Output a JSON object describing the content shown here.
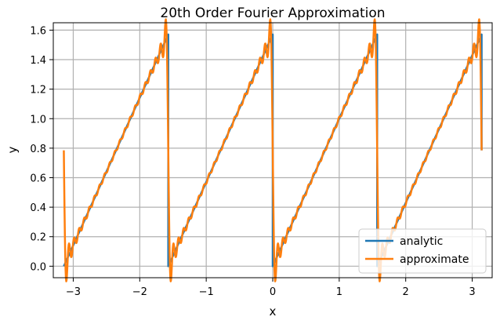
{
  "chart_data": {
    "type": "line",
    "title": "20th Order Fourier Approximation",
    "xlabel": "x",
    "ylabel": "y",
    "xlim": [
      -3.3,
      3.3
    ],
    "ylim": [
      -0.078,
      1.65
    ],
    "grid": true,
    "legend_position": "bottom-right",
    "xticks": [
      -3,
      -2,
      -1,
      0,
      1,
      2,
      3
    ],
    "xtick_labels": [
      "−3",
      "−2",
      "−1",
      "0",
      "1",
      "2",
      "3"
    ],
    "yticks": [
      0.0,
      0.2,
      0.4,
      0.6,
      0.8,
      1.0,
      1.2,
      1.4,
      1.6
    ],
    "ytick_labels": [
      "0.0",
      "0.2",
      "0.4",
      "0.6",
      "0.8",
      "1.0",
      "1.2",
      "1.4",
      "1.6"
    ],
    "series": [
      {
        "name": "analytic",
        "color": "#1f77b4",
        "x": [
          -3.1416,
          -1.5708,
          -1.5708,
          0.0,
          0.0,
          1.5708,
          1.5708,
          3.1416,
          3.1416
        ],
        "y": [
          0.0,
          1.5708,
          0.0,
          1.5708,
          0.0,
          1.5708,
          0.0,
          1.5708,
          0.7854
        ]
      },
      {
        "name": "approximate",
        "color": "#ff7f0e",
        "x_range": [
          -3.1416,
          3.1416
        ],
        "samples": 1201,
        "period": 1.5708,
        "harmonics": 20
      }
    ]
  }
}
